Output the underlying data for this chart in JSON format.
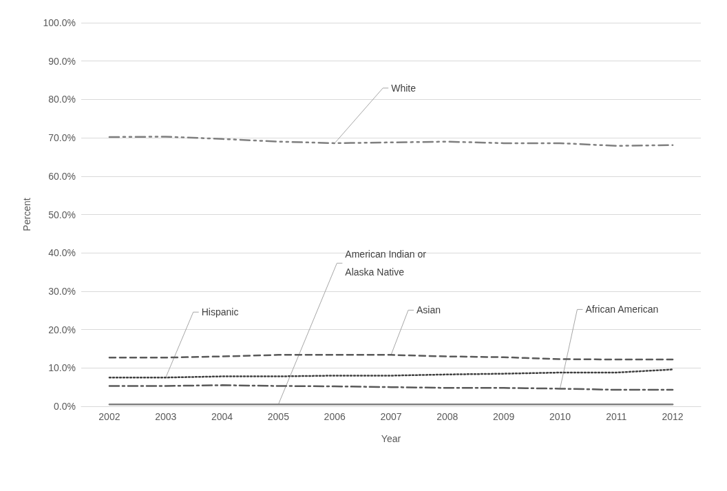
{
  "chart_data": {
    "type": "line",
    "xlabel": "Year",
    "ylabel": "Percent",
    "categories": [
      "2002",
      "2003",
      "2004",
      "2005",
      "2006",
      "2007",
      "2008",
      "2009",
      "2010",
      "2011",
      "2012"
    ],
    "series": [
      {
        "name": "White",
        "color": "#7f7f7f",
        "line_style": "dashdotdot",
        "values": [
          70.2,
          70.3,
          69.7,
          69.0,
          68.6,
          68.8,
          69.0,
          68.6,
          68.6,
          67.9,
          68.1
        ]
      },
      {
        "name": "Asian",
        "color": "#595959",
        "line_style": "dashed",
        "values": [
          12.7,
          12.7,
          13.0,
          13.4,
          13.4,
          13.4,
          13.0,
          12.8,
          12.3,
          12.2,
          12.2
        ]
      },
      {
        "name": "Hispanic",
        "color": "#404040",
        "line_style": "dotted",
        "values": [
          7.5,
          7.5,
          7.8,
          7.8,
          8.0,
          8.0,
          8.3,
          8.5,
          8.8,
          8.8,
          9.6
        ]
      },
      {
        "name": "African American",
        "color": "#595959",
        "line_style": "dashdot",
        "values": [
          5.3,
          5.3,
          5.5,
          5.3,
          5.2,
          5.0,
          4.8,
          4.8,
          4.6,
          4.3,
          4.3
        ]
      },
      {
        "name": "American Indian or\nAlaska Native",
        "color": "#7f7f7f",
        "line_style": "solid",
        "values": [
          0.5,
          0.5,
          0.5,
          0.5,
          0.5,
          0.5,
          0.5,
          0.5,
          0.5,
          0.5,
          0.5
        ]
      }
    ],
    "ylim": [
      0,
      100
    ],
    "yticks": [
      {
        "value": 0,
        "label": "0.0%"
      },
      {
        "value": 10,
        "label": "10.0%"
      },
      {
        "value": 20,
        "label": "20.0%"
      },
      {
        "value": 30,
        "label": "30.0%"
      },
      {
        "value": 40,
        "label": "40.0%"
      },
      {
        "value": 50,
        "label": "50.0%"
      },
      {
        "value": 60,
        "label": "60.0%"
      },
      {
        "value": 70,
        "label": "70.0%"
      },
      {
        "value": 80,
        "label": "80.0%"
      },
      {
        "value": 90,
        "label": "90.0%"
      },
      {
        "value": 100,
        "label": "100.0%"
      }
    ],
    "grid": "y",
    "legend": false,
    "marker": "none"
  }
}
